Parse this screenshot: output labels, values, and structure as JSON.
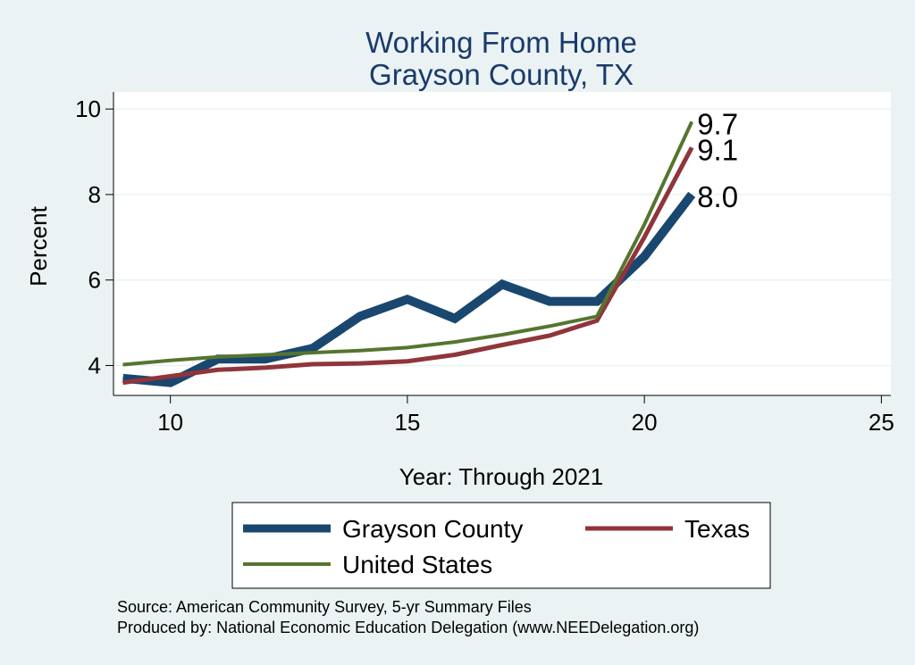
{
  "chart_data": {
    "type": "line",
    "title": [
      "Working From Home",
      "Grayson County, TX"
    ],
    "xlabel": "Year: Through 2021",
    "ylabel": "Percent",
    "xlim": [
      8.8,
      25.2
    ],
    "ylim": [
      3.3,
      10.4
    ],
    "xticks": [
      10,
      15,
      20,
      25
    ],
    "yticks": [
      4,
      6,
      8,
      10
    ],
    "grid": true,
    "legend_position": "bottom",
    "series": [
      {
        "name": "Grayson County",
        "color": "#1a476f",
        "x": [
          9,
          10,
          11,
          12,
          13,
          14,
          15,
          16,
          17,
          18,
          19,
          20,
          21
        ],
        "values": [
          3.7,
          3.6,
          4.15,
          4.15,
          4.4,
          5.15,
          5.55,
          5.1,
          5.9,
          5.5,
          5.5,
          6.55,
          8.0
        ],
        "end_label": "8.0"
      },
      {
        "name": "Texas",
        "color": "#90353b",
        "x": [
          9,
          10,
          11,
          12,
          13,
          14,
          15,
          16,
          17,
          18,
          19,
          20,
          21
        ],
        "values": [
          3.6,
          3.75,
          3.9,
          3.95,
          4.03,
          4.05,
          4.1,
          4.25,
          4.48,
          4.7,
          5.05,
          7.0,
          9.1
        ],
        "end_label": "9.1"
      },
      {
        "name": "United States",
        "color": "#55752f",
        "x": [
          9,
          10,
          11,
          12,
          13,
          14,
          15,
          16,
          17,
          18,
          19,
          20,
          21
        ],
        "values": [
          4.02,
          4.12,
          4.2,
          4.25,
          4.3,
          4.35,
          4.42,
          4.55,
          4.72,
          4.92,
          5.15,
          7.3,
          9.7
        ],
        "end_label": "9.7"
      }
    ],
    "source_lines": [
      "Source: American Community Survey, 5-yr Summary Files",
      "Produced by: National Economic Education Delegation (www.NEEDelegation.org)"
    ]
  }
}
